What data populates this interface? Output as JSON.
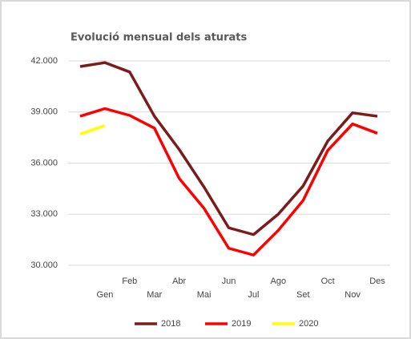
{
  "chart_data": {
    "type": "line",
    "title": "Evolució mensual dels aturats",
    "categories": [
      null,
      "Gen",
      "Feb",
      "Mar",
      "Abr",
      "Mai",
      "Jun",
      "Jul",
      "Ago",
      "Set",
      "Oct",
      "Nov",
      "Des"
    ],
    "series": [
      {
        "name": "2018",
        "color": "#7b1c1c",
        "values": [
          41670,
          41900,
          41350,
          38750,
          36800,
          34600,
          32200,
          31800,
          33000,
          34650,
          37300,
          38950,
          38750
        ]
      },
      {
        "name": "2019",
        "color": "#ff0000",
        "values": [
          38750,
          39200,
          38800,
          38050,
          35100,
          33350,
          31000,
          30600,
          32050,
          33800,
          36750,
          38300,
          37750
        ]
      },
      {
        "name": "2020",
        "color": "#ffff00",
        "values": [
          37700,
          38200,
          null,
          null,
          null,
          null,
          null,
          null,
          null,
          null,
          null,
          null,
          null
        ]
      }
    ],
    "ylim": [
      30000,
      42000
    ],
    "yticks": [
      {
        "value": 30000,
        "label": "30.000"
      },
      {
        "value": 33000,
        "label": "33.000"
      },
      {
        "value": 36000,
        "label": "36.000"
      },
      {
        "value": 39000,
        "label": "39.000"
      },
      {
        "value": 42000,
        "label": "42.000"
      }
    ],
    "grid": true,
    "legend": "bottom"
  }
}
